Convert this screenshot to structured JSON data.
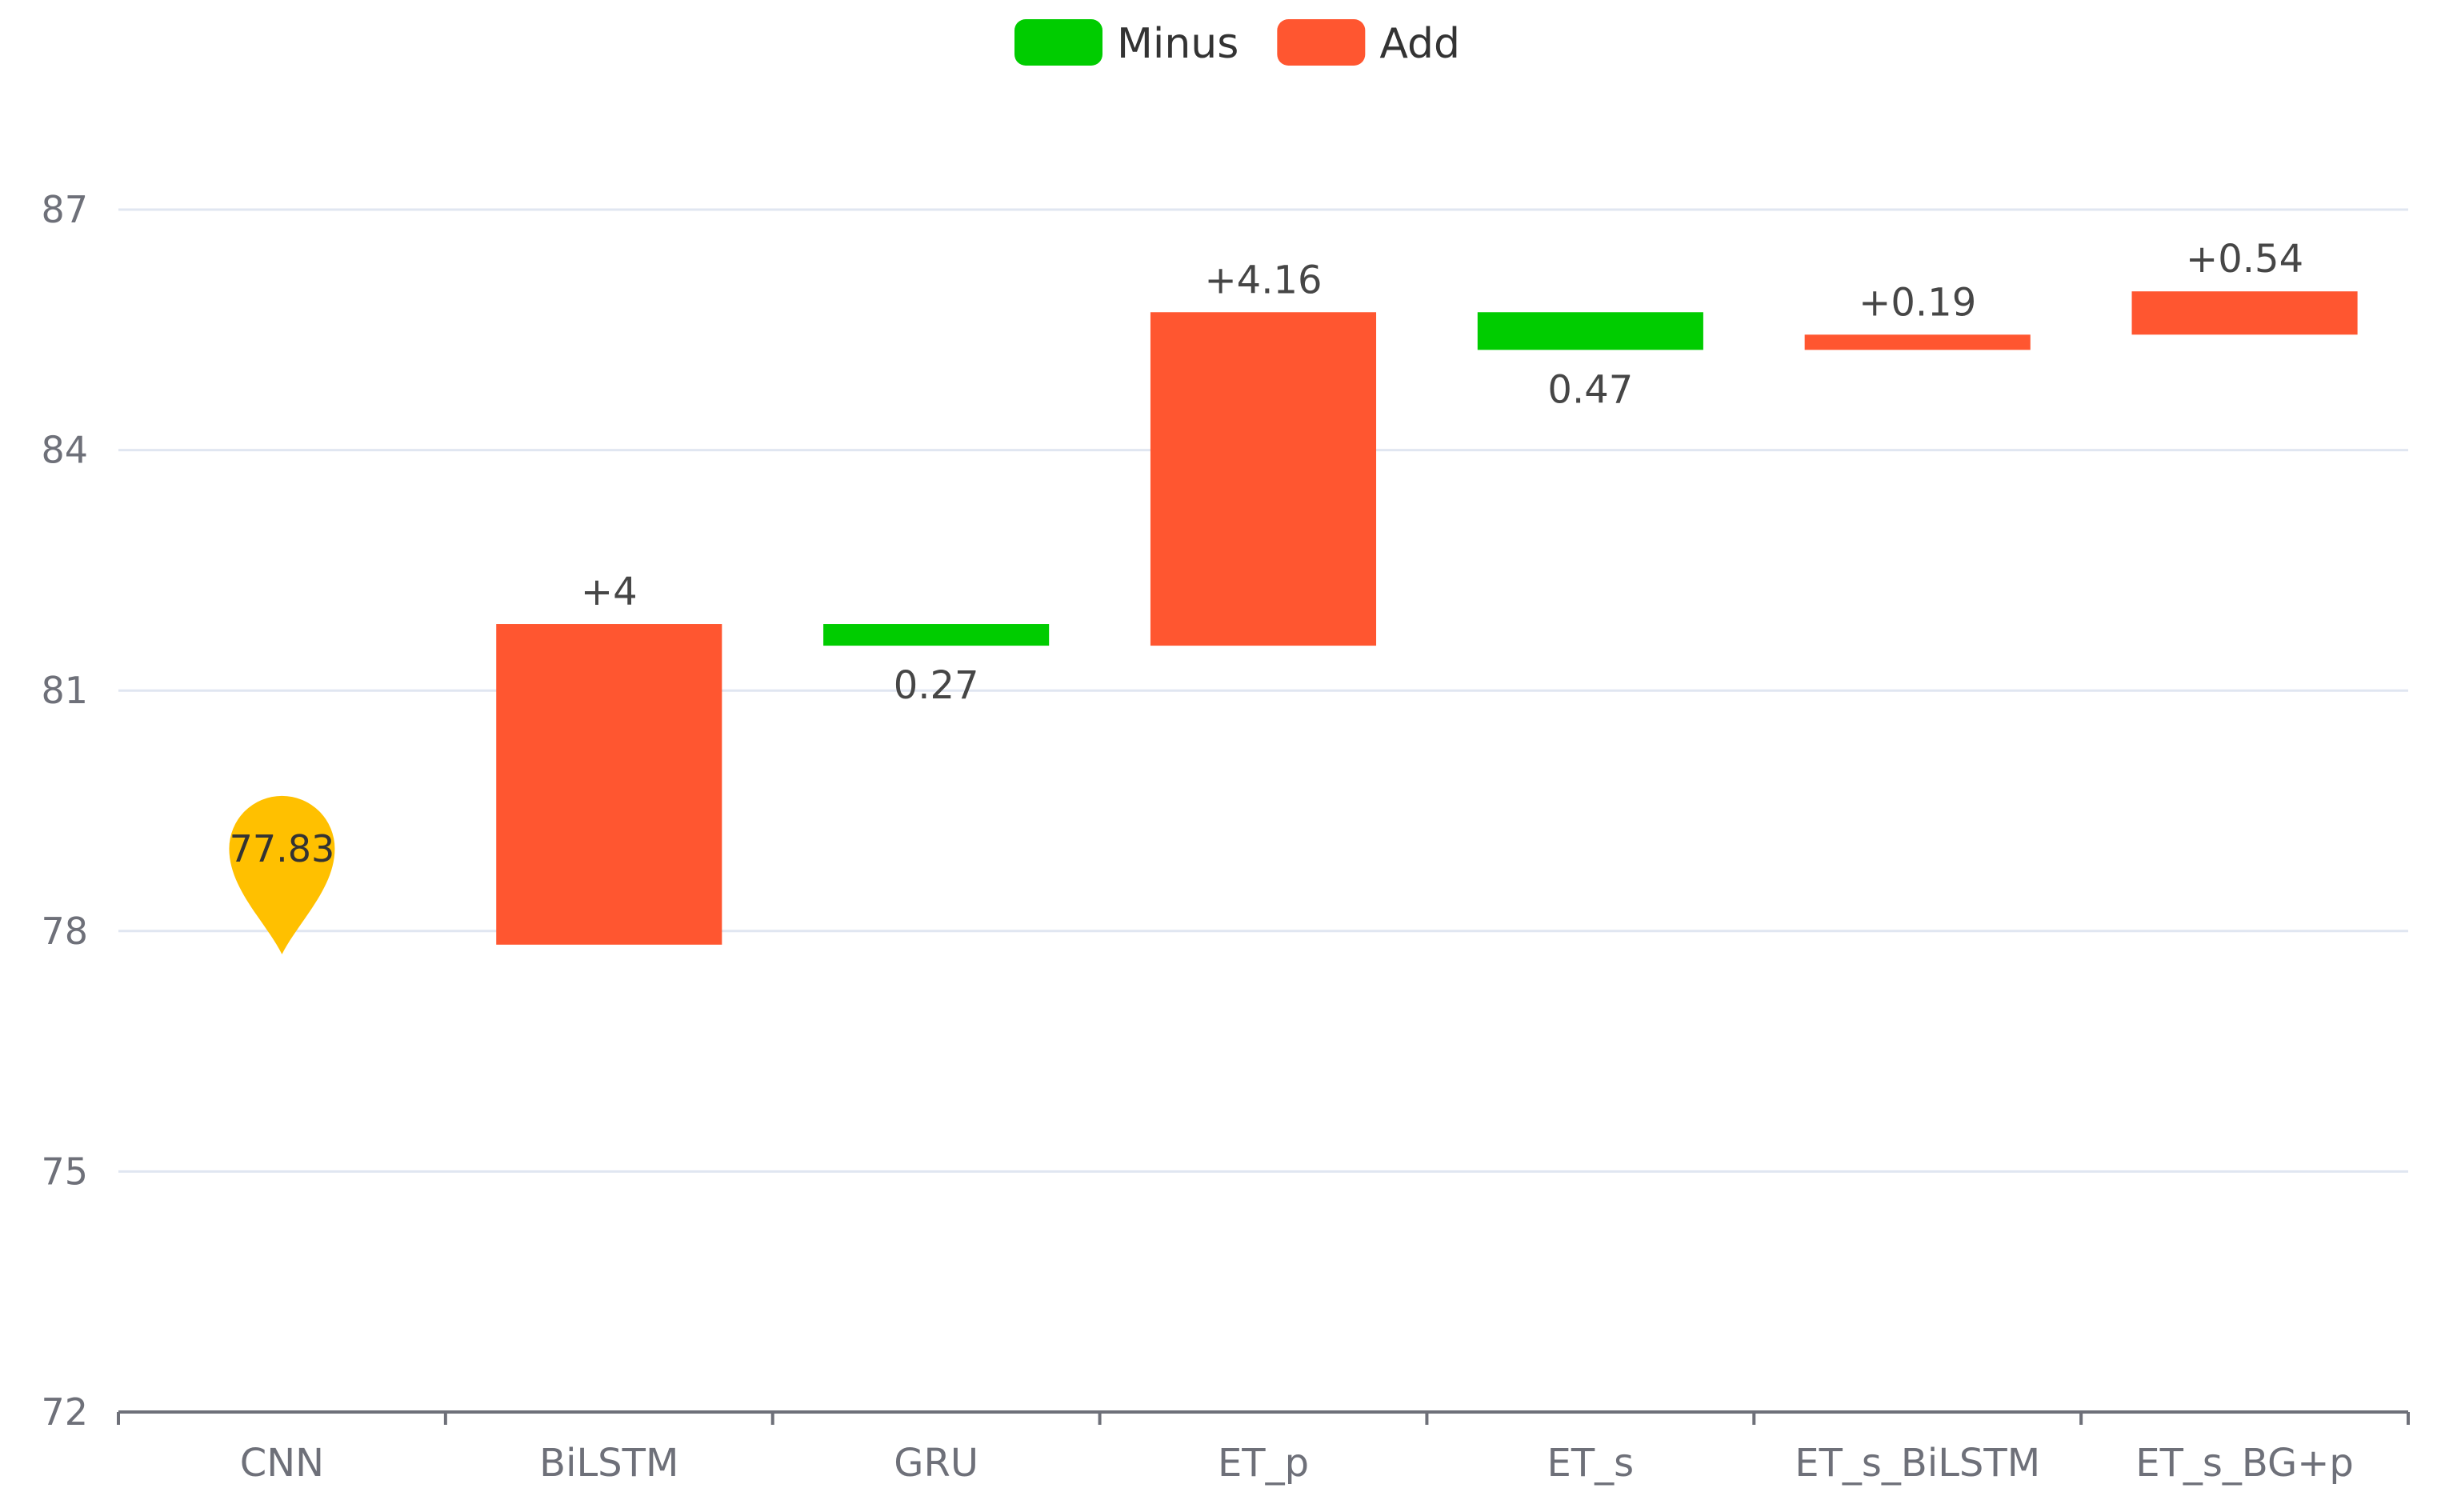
{
  "chart_data": {
    "type": "bar",
    "subtype": "waterfall",
    "categories": [
      "CNN",
      "BiLSTM",
      "GRU",
      "ET_p",
      "ET_s",
      "ET_s_BiLSTM",
      "ET_s_BG+p"
    ],
    "base_value": 77.83,
    "base_label": "77.83",
    "steps": [
      {
        "category": "BiLSTM",
        "series": "Add",
        "start": 77.83,
        "end": 81.83,
        "label": "+4"
      },
      {
        "category": "GRU",
        "series": "Minus",
        "start": 81.83,
        "end": 81.56,
        "label": "0.27"
      },
      {
        "category": "ET_p",
        "series": "Add",
        "start": 81.56,
        "end": 85.72,
        "label": "+4.16"
      },
      {
        "category": "ET_s",
        "series": "Minus",
        "start": 85.72,
        "end": 85.25,
        "label": "0.47"
      },
      {
        "category": "ET_s_BiLSTM",
        "series": "Add",
        "start": 85.25,
        "end": 85.44,
        "label": "+0.19"
      },
      {
        "category": "ET_s_BG+p",
        "series": "Add",
        "start": 85.44,
        "end": 85.98,
        "label": "+0.54"
      }
    ],
    "series": [
      {
        "name": "Minus",
        "color": "#00cc00"
      },
      {
        "name": "Add",
        "color": "#ff5630"
      }
    ],
    "ylim": [
      72,
      87
    ],
    "yticks": [
      "72",
      "75",
      "78",
      "81",
      "84",
      "87"
    ],
    "grid": true,
    "legend_position": "top-center",
    "marker_color": "#ffc000",
    "title": "",
    "xlabel": "",
    "ylabel": ""
  }
}
